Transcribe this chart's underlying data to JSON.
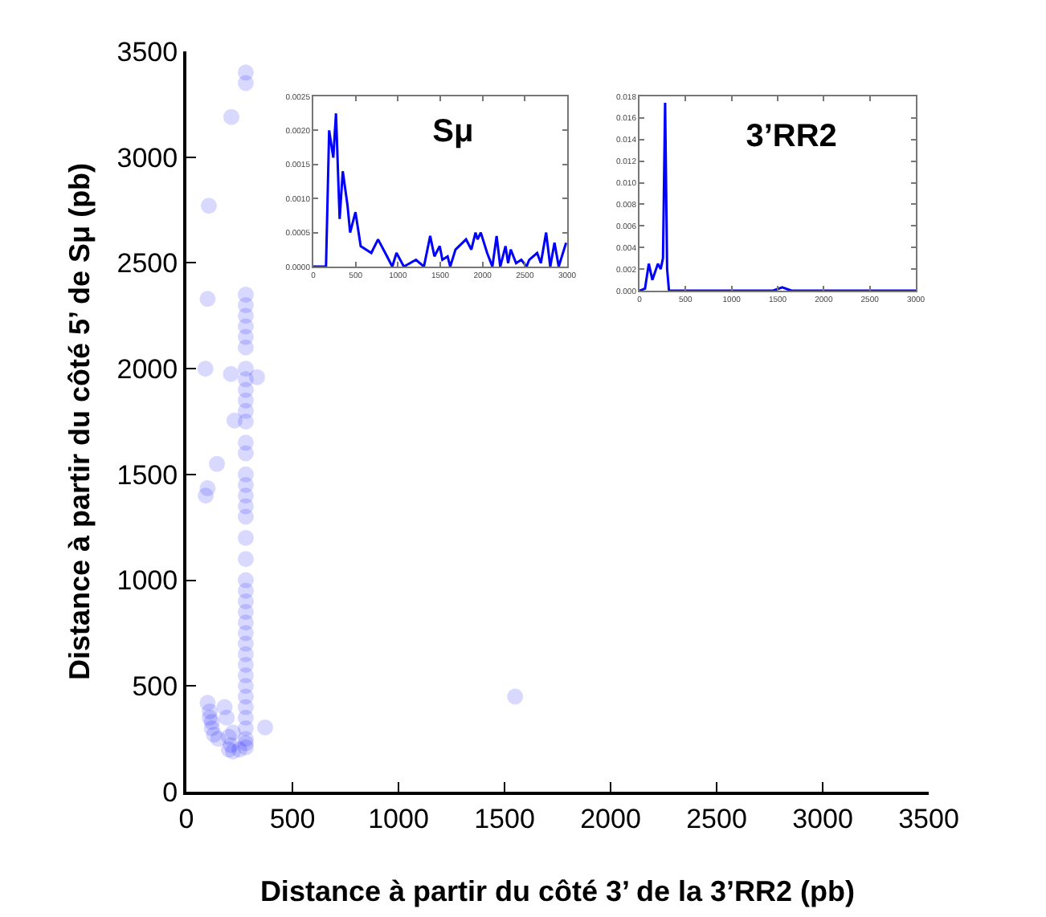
{
  "chart_data": [
    {
      "type": "scatter",
      "xlabel": "Distance à partir du côté 3’ de la 3’RR2 (pb)",
      "ylabel": "Distance à partir du côté 5’ de Sμ (pb)",
      "color": "#0000ff",
      "marker": "circle",
      "grid": false,
      "x": [
        280,
        280,
        280,
        280,
        280,
        280,
        280,
        280,
        280,
        280,
        280,
        280,
        280,
        280,
        280,
        280,
        280,
        280,
        280,
        280,
        280,
        280,
        280,
        280,
        280,
        280,
        280,
        280,
        280,
        280,
        280,
        280,
        280,
        280,
        280,
        280,
        280,
        280,
        280,
        280,
        280,
        106,
        100,
        212,
        90,
        210,
        227,
        333,
        144,
        91,
        100,
        100,
        110,
        120,
        130,
        150,
        110,
        120,
        200,
        210,
        220,
        250,
        200,
        220,
        180,
        190,
        371,
        1550
      ],
      "values": [
        3400,
        3350,
        2350,
        2300,
        2250,
        2200,
        2150,
        2100,
        2000,
        1950,
        1900,
        1850,
        1800,
        1750,
        1650,
        1600,
        1500,
        1450,
        1400,
        1350,
        1300,
        1200,
        1100,
        1000,
        950,
        900,
        850,
        800,
        750,
        700,
        650,
        600,
        550,
        500,
        450,
        400,
        350,
        300,
        250,
        230,
        210,
        2770,
        2330,
        3190,
        2000,
        1975,
        1755,
        1960,
        1550,
        1400,
        1435,
        420,
        350,
        300,
        270,
        250,
        380,
        330,
        200,
        220,
        190,
        200,
        260,
        280,
        400,
        350,
        304,
        450
      ],
      "xlim": [
        0,
        3500
      ],
      "ylim": [
        0,
        3500
      ],
      "xticks": [
        0,
        500,
        1000,
        1500,
        2000,
        2500,
        3000,
        3500
      ],
      "yticks": [
        0,
        500,
        1000,
        1500,
        2000,
        2500,
        3000,
        3500
      ]
    },
    {
      "type": "line",
      "title": "Sμ",
      "color": "#0000ff",
      "line_style": "solid",
      "grid": false,
      "x": [
        0,
        150,
        187,
        236,
        268,
        311,
        348,
        404,
        435,
        498,
        560,
        685,
        765,
        871,
        933,
        983,
        1070,
        1213,
        1307,
        1381,
        1431,
        1494,
        1525,
        1587,
        1618,
        1680,
        1805,
        1867,
        1917,
        1941,
        1979,
        2054,
        2116,
        2166,
        2209,
        2271,
        2302,
        2333,
        2396,
        2458,
        2520,
        2551,
        2645,
        2689,
        2751,
        2800,
        2850,
        2900,
        2987
      ],
      "values": [
        0,
        0,
        0.002,
        0.0016,
        0.00225,
        0.0007,
        0.0014,
        0.0009,
        0.0005,
        0.0008,
        0.0003,
        0.0002,
        0.0004,
        0.00015,
        0,
        0.0002,
        0,
        0.0001,
        0,
        0.00045,
        0.00015,
        0.0003,
        0.0001,
        0.00015,
        0,
        0.00025,
        0.0004,
        0.00025,
        0.0005,
        0.0004,
        0.0005,
        0.0002,
        0,
        0.00045,
        0,
        0.0003,
        5e-05,
        0.00025,
        5e-05,
        0.0001,
        0,
        0.0001,
        0.0002,
        5e-05,
        0.0005,
        0,
        0.00035,
        0,
        0.00035
      ],
      "xlim": [
        0,
        3000
      ],
      "ylim": [
        0,
        0.0025
      ],
      "xticks": [
        0,
        500,
        1000,
        1500,
        2000,
        2500,
        3000
      ],
      "yticks": [
        {
          "value": 0,
          "label": "0.0000"
        },
        {
          "value": 0.0005,
          "label": "0.0005"
        },
        {
          "value": 0.001,
          "label": "0.0010"
        },
        {
          "value": 0.0015,
          "label": "0.0015"
        },
        {
          "value": 0.002,
          "label": "0.0020"
        },
        {
          "value": 0.0025,
          "label": "0.0025"
        }
      ]
    },
    {
      "type": "line",
      "title": "3’RR2",
      "color": "#0000ff",
      "line_style": "solid",
      "grid": false,
      "x": [
        0,
        60,
        101,
        140,
        200,
        230,
        255,
        278,
        300,
        320,
        400,
        1450,
        1550,
        1650,
        3000
      ],
      "values": [
        0,
        0.0002,
        0.0025,
        0.001,
        0.0025,
        0.002,
        0.003,
        0.0174,
        0.002,
        0,
        0,
        0,
        0.0003,
        0,
        0
      ],
      "xlim": [
        0,
        3000
      ],
      "ylim": [
        0,
        0.018
      ],
      "xticks": [
        0,
        500,
        1000,
        1500,
        2000,
        2500,
        3000
      ],
      "yticks": [
        {
          "value": 0,
          "label": "0.000"
        },
        {
          "value": 0.002,
          "label": "0.002"
        },
        {
          "value": 0.004,
          "label": "0.004"
        },
        {
          "value": 0.006,
          "label": "0.006"
        },
        {
          "value": 0.008,
          "label": "0.008"
        },
        {
          "value": 0.01,
          "label": "0.010"
        },
        {
          "value": 0.012,
          "label": "0.012"
        },
        {
          "value": 0.014,
          "label": "0.014"
        },
        {
          "value": 0.016,
          "label": "0.016"
        },
        {
          "value": 0.018,
          "label": "0.018"
        }
      ]
    }
  ]
}
